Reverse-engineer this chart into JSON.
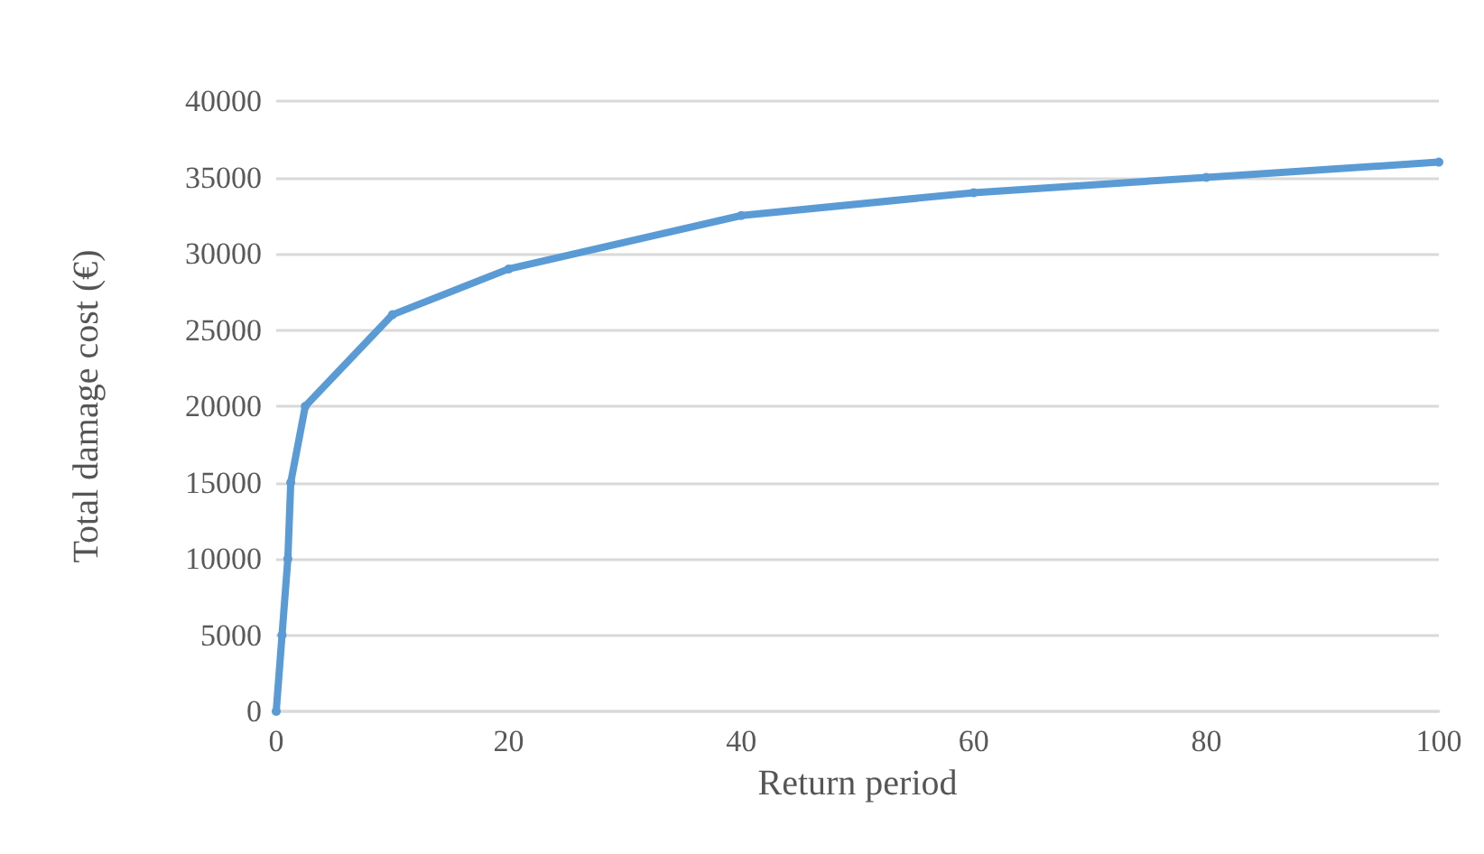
{
  "chart_data": {
    "type": "line",
    "xlabel": "Return period",
    "ylabel": "Total damage cost (€)",
    "x": [
      0,
      0.5,
      1,
      1.25,
      2.5,
      10,
      20,
      40,
      60,
      80,
      100
    ],
    "series": [
      {
        "color": "#5b9bd5",
        "values": [
          0,
          5000,
          10000,
          15000,
          20000,
          26000,
          29000,
          32500,
          34000,
          35000,
          36000
        ]
      }
    ],
    "xlim": [
      0,
      100
    ],
    "xticks": [
      0,
      20,
      40,
      60,
      80,
      100
    ],
    "ylim": [
      0,
      40000
    ],
    "yticks": [
      0,
      5000,
      10000,
      15000,
      20000,
      25000,
      30000,
      35000,
      40000
    ],
    "grid": "y",
    "marker": "circle",
    "line_style": "solid"
  }
}
